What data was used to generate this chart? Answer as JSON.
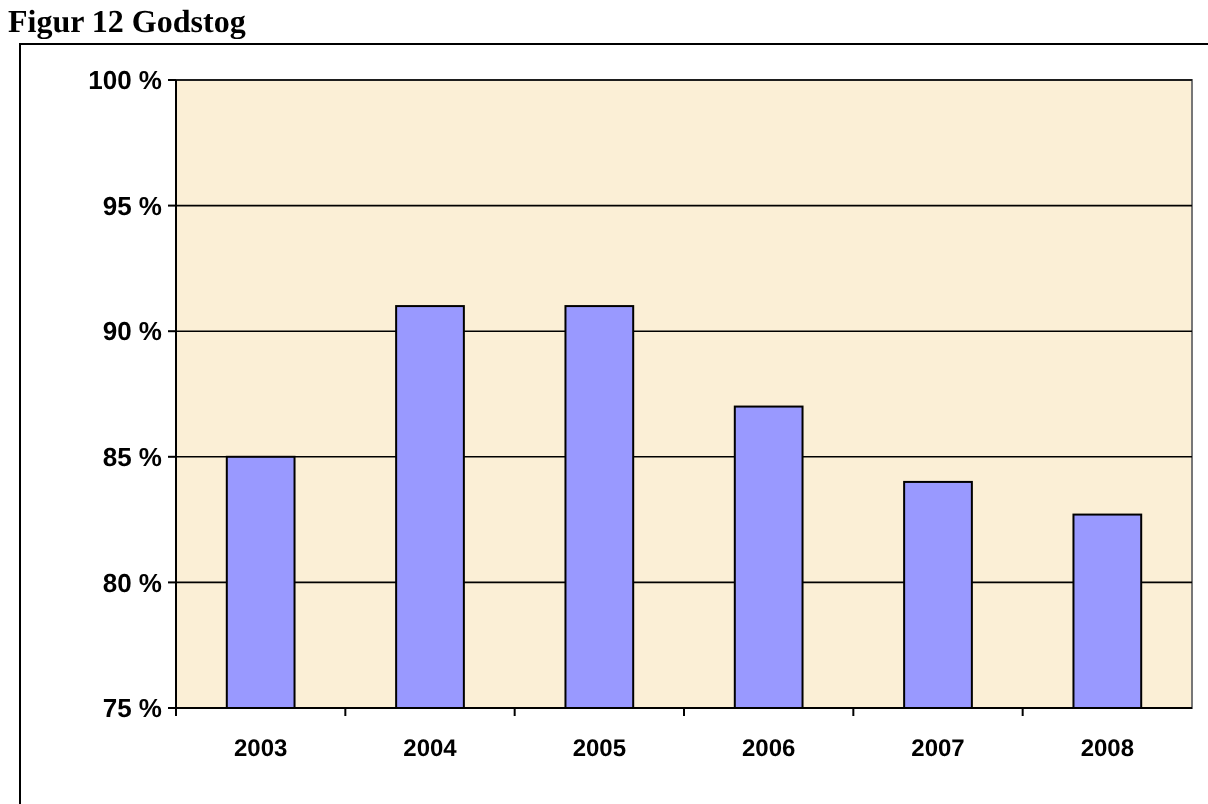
{
  "chart_data": {
    "type": "bar",
    "title": "Figur 12 Godstog",
    "categories": [
      "2003",
      "2004",
      "2005",
      "2006",
      "2007",
      "2008"
    ],
    "values": [
      85,
      91,
      91,
      87,
      84,
      82.7
    ],
    "color": "#9999ff",
    "ylim": [
      75,
      100
    ],
    "yticks": [
      {
        "value": 75,
        "label": "75 %"
      },
      {
        "value": 80,
        "label": "80 %"
      },
      {
        "value": 85,
        "label": "85 %"
      },
      {
        "value": 90,
        "label": "90 %"
      },
      {
        "value": 95,
        "label": "95 %"
      },
      {
        "value": 100,
        "label": "100 %"
      }
    ],
    "grid": "y"
  }
}
